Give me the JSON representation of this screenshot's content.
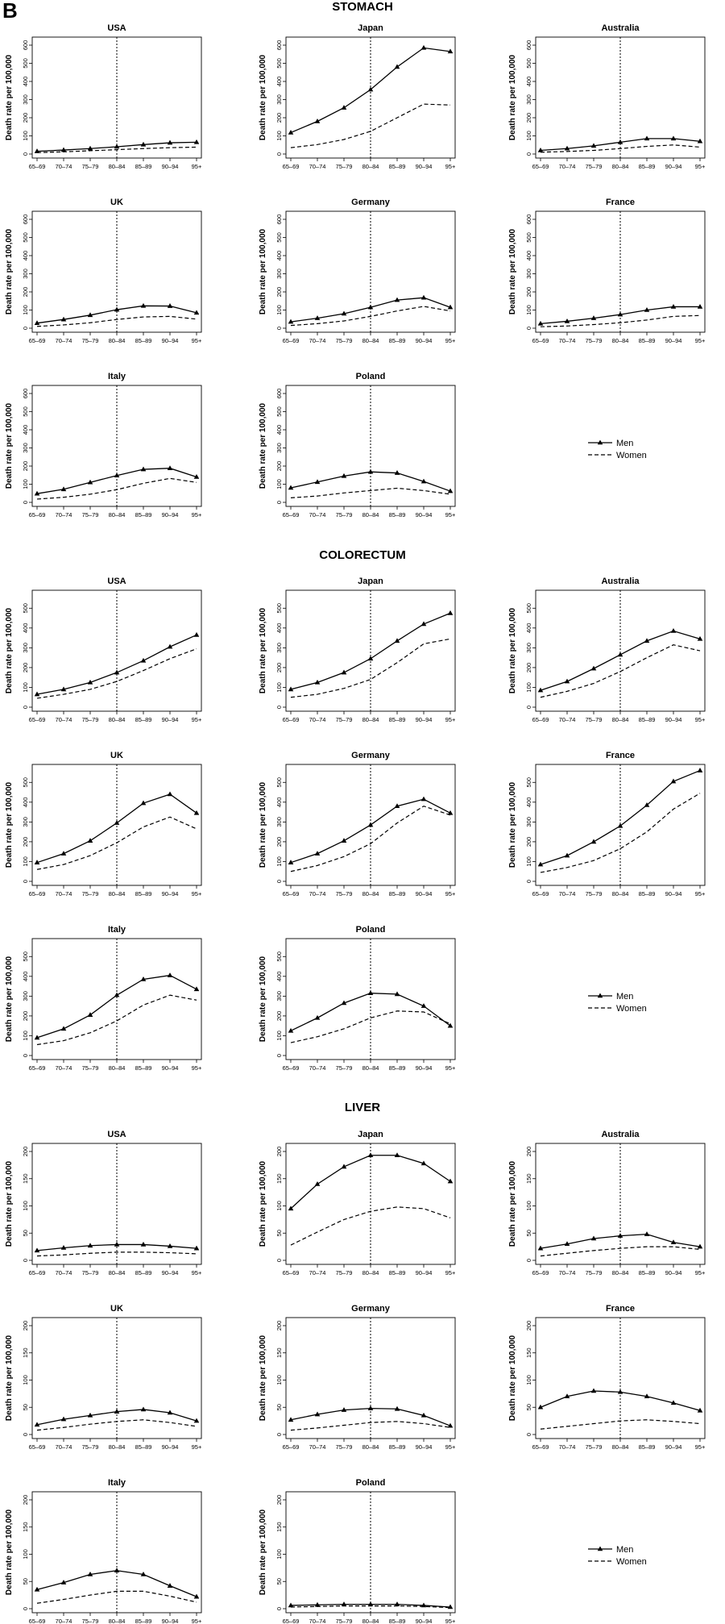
{
  "panel_label": "B",
  "legend": {
    "men": "Men",
    "women": "Women"
  },
  "categories": [
    "65–69",
    "70–74",
    "75–79",
    "80–84",
    "85–89",
    "90–94",
    "95+"
  ],
  "ylabel": "Death rate per 100,000",
  "colors": {
    "line": "#000000",
    "frame": "#000000",
    "ref": "#000000",
    "bg": "#ffffff"
  },
  "chart_data": [
    {
      "section": "STOMACH",
      "type": "line",
      "ylim": [
        0,
        600
      ],
      "yticks": [
        0,
        100,
        200,
        300,
        400,
        500,
        600
      ],
      "charts": [
        {
          "title": "USA",
          "series": [
            {
              "name": "Men",
              "values": [
                15,
                22,
                30,
                40,
                52,
                62,
                65
              ]
            },
            {
              "name": "Women",
              "values": [
                8,
                12,
                18,
                24,
                30,
                35,
                38
              ]
            }
          ]
        },
        {
          "title": "Japan",
          "series": [
            {
              "name": "Men",
              "values": [
                118,
                180,
                255,
                355,
                480,
                585,
                565
              ]
            },
            {
              "name": "Women",
              "values": [
                35,
                52,
                80,
                125,
                200,
                275,
                270
              ]
            }
          ]
        },
        {
          "title": "Australia",
          "series": [
            {
              "name": "Men",
              "values": [
                20,
                30,
                45,
                65,
                85,
                85,
                70
              ]
            },
            {
              "name": "Women",
              "values": [
                10,
                14,
                20,
                30,
                42,
                50,
                38
              ]
            }
          ]
        },
        {
          "title": "UK",
          "series": [
            {
              "name": "Men",
              "values": [
                28,
                48,
                72,
                102,
                123,
                122,
                85
              ]
            },
            {
              "name": "Women",
              "values": [
                10,
                18,
                30,
                48,
                62,
                65,
                50
              ]
            }
          ]
        },
        {
          "title": "Germany",
          "series": [
            {
              "name": "Men",
              "values": [
                35,
                55,
                80,
                115,
                155,
                168,
                115
              ]
            },
            {
              "name": "Women",
              "values": [
                15,
                25,
                40,
                65,
                95,
                120,
                95
              ]
            }
          ]
        },
        {
          "title": "France",
          "series": [
            {
              "name": "Men",
              "values": [
                25,
                38,
                55,
                75,
                100,
                118,
                118
              ]
            },
            {
              "name": "Women",
              "values": [
                8,
                12,
                20,
                30,
                45,
                65,
                70
              ]
            }
          ]
        },
        {
          "title": "Italy",
          "series": [
            {
              "name": "Men",
              "values": [
                48,
                72,
                110,
                148,
                182,
                188,
                140
              ]
            },
            {
              "name": "Women",
              "values": [
                18,
                28,
                45,
                70,
                105,
                132,
                110
              ]
            }
          ]
        },
        {
          "title": "Poland",
          "series": [
            {
              "name": "Men",
              "values": [
                80,
                112,
                145,
                168,
                162,
                115,
                62
              ]
            },
            {
              "name": "Women",
              "values": [
                25,
                35,
                52,
                65,
                78,
                65,
                45
              ]
            }
          ]
        }
      ]
    },
    {
      "section": "COLORECTUM",
      "type": "line",
      "ylim": [
        0,
        550
      ],
      "yticks": [
        0,
        100,
        200,
        300,
        400,
        500
      ],
      "charts": [
        {
          "title": "USA",
          "series": [
            {
              "name": "Men",
              "values": [
                65,
                90,
                125,
                175,
                235,
                305,
                365
              ]
            },
            {
              "name": "Women",
              "values": [
                45,
                65,
                90,
                130,
                185,
                245,
                295
              ]
            }
          ]
        },
        {
          "title": "Japan",
          "series": [
            {
              "name": "Men",
              "values": [
                90,
                125,
                175,
                245,
                335,
                420,
                475
              ]
            },
            {
              "name": "Women",
              "values": [
                50,
                65,
                95,
                140,
                225,
                320,
                345
              ]
            }
          ]
        },
        {
          "title": "Australia",
          "series": [
            {
              "name": "Men",
              "values": [
                85,
                130,
                195,
                265,
                335,
                385,
                345
              ]
            },
            {
              "name": "Women",
              "values": [
                50,
                80,
                120,
                180,
                250,
                315,
                285
              ]
            }
          ]
        },
        {
          "title": "UK",
          "series": [
            {
              "name": "Men",
              "values": [
                95,
                140,
                205,
                295,
                395,
                440,
                345
              ]
            },
            {
              "name": "Women",
              "values": [
                60,
                85,
                130,
                195,
                275,
                325,
                265
              ]
            }
          ]
        },
        {
          "title": "Germany",
          "series": [
            {
              "name": "Men",
              "values": [
                95,
                140,
                205,
                285,
                380,
                415,
                345
              ]
            },
            {
              "name": "Women",
              "values": [
                50,
                80,
                125,
                190,
                295,
                380,
                335
              ]
            }
          ]
        },
        {
          "title": "France",
          "series": [
            {
              "name": "Men",
              "values": [
                85,
                130,
                200,
                280,
                385,
                505,
                560
              ]
            },
            {
              "name": "Women",
              "values": [
                45,
                70,
                105,
                165,
                250,
                365,
                445
              ]
            }
          ]
        },
        {
          "title": "Italy",
          "series": [
            {
              "name": "Men",
              "values": [
                90,
                135,
                205,
                305,
                385,
                405,
                335
              ]
            },
            {
              "name": "Women",
              "values": [
                55,
                75,
                115,
                175,
                255,
                305,
                280
              ]
            }
          ]
        },
        {
          "title": "Poland",
          "series": [
            {
              "name": "Men",
              "values": [
                125,
                190,
                265,
                315,
                310,
                250,
                150
              ]
            },
            {
              "name": "Women",
              "values": [
                65,
                95,
                135,
                190,
                225,
                220,
                160
              ]
            }
          ]
        }
      ]
    },
    {
      "section": "LIVER",
      "type": "line",
      "ylim": [
        0,
        200
      ],
      "yticks": [
        0,
        50,
        100,
        150,
        200
      ],
      "charts": [
        {
          "title": "USA",
          "series": [
            {
              "name": "Men",
              "values": [
                18,
                23,
                27,
                29,
                29,
                26,
                22
              ]
            },
            {
              "name": "Women",
              "values": [
                8,
                10,
                13,
                15,
                15,
                14,
                12
              ]
            }
          ]
        },
        {
          "title": "Japan",
          "series": [
            {
              "name": "Men",
              "values": [
                95,
                140,
                172,
                193,
                193,
                178,
                145
              ]
            },
            {
              "name": "Women",
              "values": [
                28,
                52,
                75,
                90,
                98,
                95,
                78
              ]
            }
          ]
        },
        {
          "title": "Australia",
          "series": [
            {
              "name": "Men",
              "values": [
                22,
                30,
                40,
                45,
                48,
                33,
                25
              ]
            },
            {
              "name": "Women",
              "values": [
                8,
                13,
                18,
                22,
                25,
                25,
                20
              ]
            }
          ]
        },
        {
          "title": "UK",
          "series": [
            {
              "name": "Men",
              "values": [
                18,
                28,
                35,
                42,
                46,
                40,
                25
              ]
            },
            {
              "name": "Women",
              "values": [
                8,
                13,
                19,
                24,
                27,
                22,
                15
              ]
            }
          ]
        },
        {
          "title": "Germany",
          "series": [
            {
              "name": "Men",
              "values": [
                27,
                37,
                45,
                48,
                47,
                35,
                16
              ]
            },
            {
              "name": "Women",
              "values": [
                8,
                12,
                17,
                22,
                24,
                20,
                13
              ]
            }
          ]
        },
        {
          "title": "France",
          "series": [
            {
              "name": "Men",
              "values": [
                50,
                70,
                80,
                78,
                70,
                58,
                44
              ]
            },
            {
              "name": "Women",
              "values": [
                10,
                15,
                20,
                25,
                27,
                24,
                20
              ]
            }
          ]
        },
        {
          "title": "Italy",
          "series": [
            {
              "name": "Men",
              "values": [
                35,
                48,
                63,
                70,
                63,
                42,
                22
              ]
            },
            {
              "name": "Women",
              "values": [
                10,
                17,
                25,
                32,
                32,
                23,
                12
              ]
            }
          ]
        },
        {
          "title": "Poland",
          "series": [
            {
              "name": "Men",
              "values": [
                6,
                7,
                8,
                8,
                8,
                6,
                3
              ]
            },
            {
              "name": "Women",
              "values": [
                3,
                4,
                5,
                5,
                5,
                4,
                2
              ]
            }
          ]
        }
      ]
    }
  ]
}
